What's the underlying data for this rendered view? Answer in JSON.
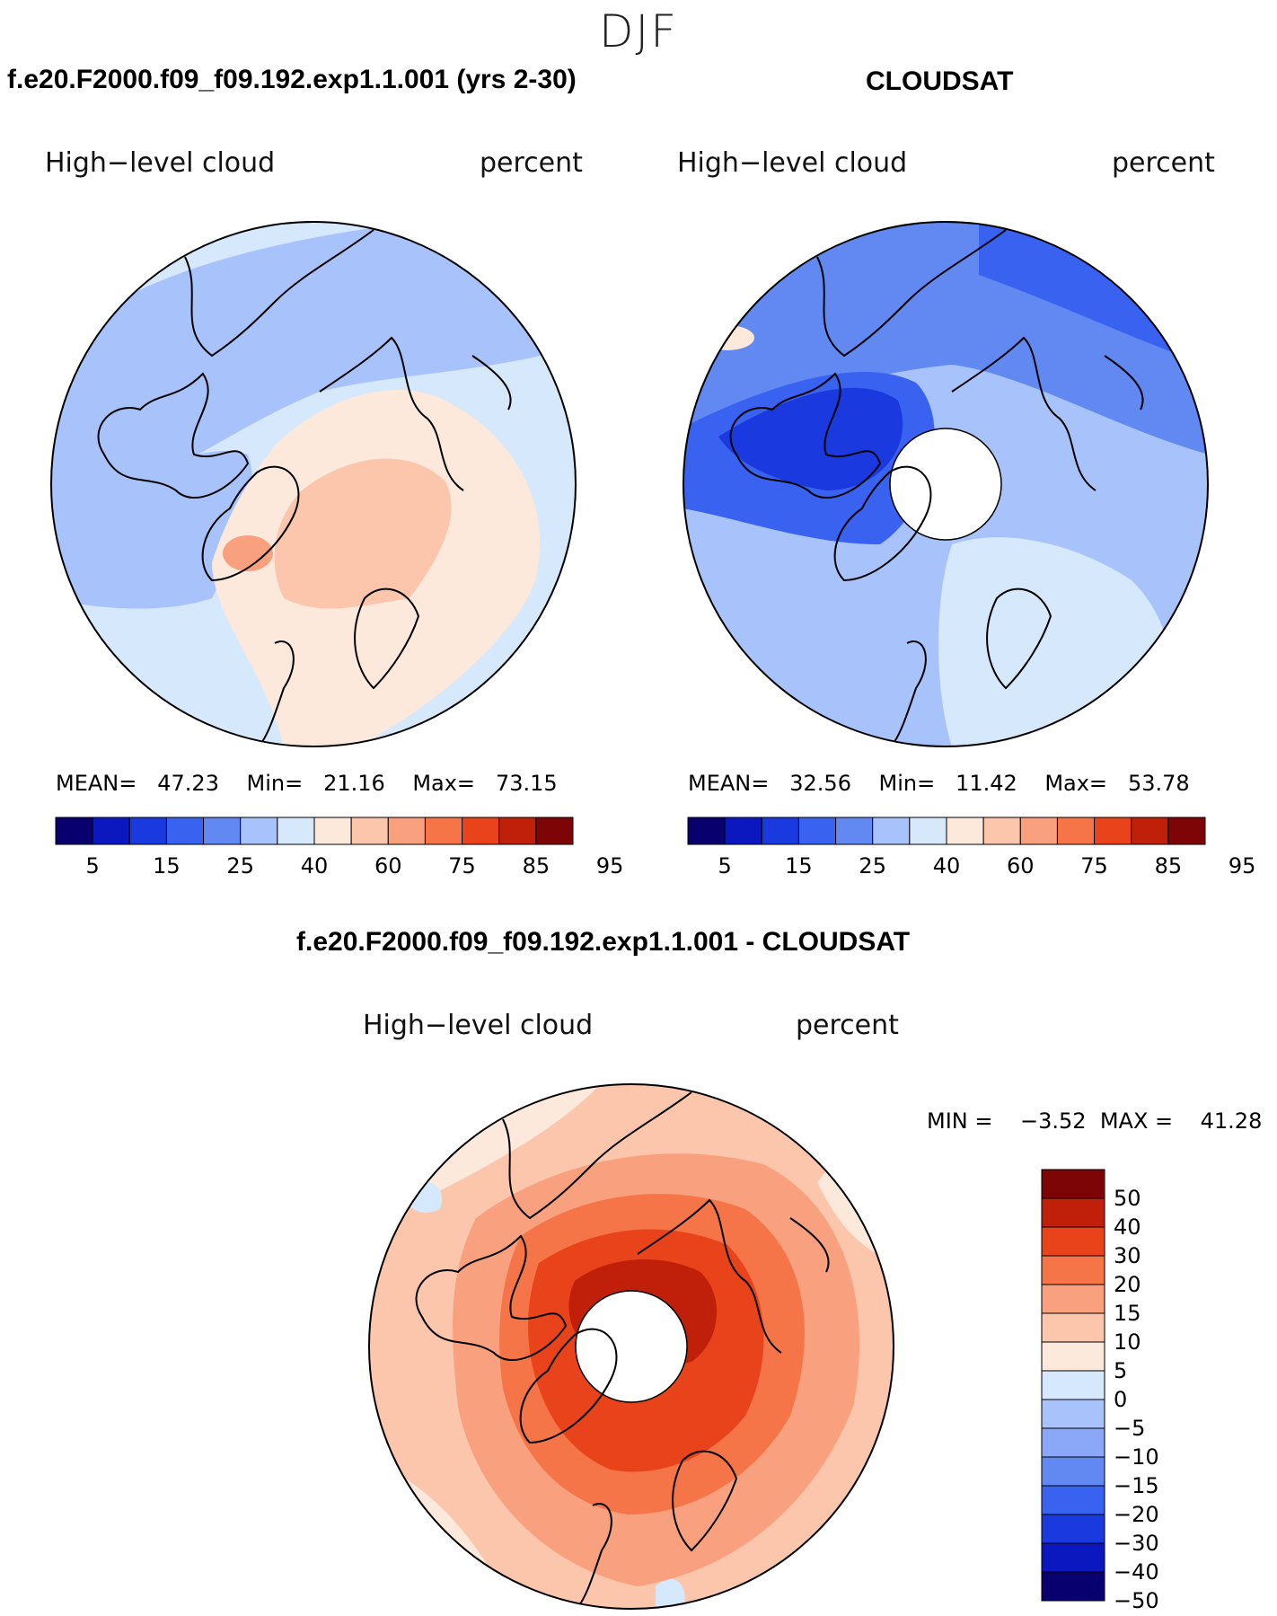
{
  "season": "DJF",
  "palette": {
    "abs": [
      "#08006e",
      "#0b18c0",
      "#1a3ae0",
      "#3a62f0",
      "#6288f2",
      "#a8c2fb",
      "#d6e8fc",
      "#fde9dc",
      "#fcc6ad",
      "#f9a07e",
      "#f57448",
      "#e9431c",
      "#c0200a",
      "#7d0505"
    ],
    "diff": [
      "#7d0505",
      "#c0200a",
      "#e9431c",
      "#f57448",
      "#f9a07e",
      "#fcc6ad",
      "#fde9dc",
      "#d6e8fc",
      "#a8c2fb",
      "#8aa8f7",
      "#6288f2",
      "#3a62f0",
      "#1a3ae0",
      "#0b18c0",
      "#08006e"
    ]
  },
  "panels": [
    {
      "title": "f.e20.F2000.f09_f09.192.exp1.1.001 (yrs 2-30)",
      "variable": "High−level cloud",
      "units": "percent",
      "mean_label": "MEAN=",
      "mean": "47.23",
      "min_label": "Min=",
      "min": "21.16",
      "max_label": "Max=",
      "max": "73.15",
      "colorbar_ticks": [
        "5",
        "15",
        "25",
        "40",
        "60",
        "75",
        "85",
        "95"
      ]
    },
    {
      "title": "CLOUDSAT",
      "variable": "High−level cloud",
      "units": "percent",
      "mean_label": "MEAN=",
      "mean": "32.56",
      "min_label": "Min=",
      "min": "11.42",
      "max_label": "Max=",
      "max": "53.78",
      "colorbar_ticks": [
        "5",
        "15",
        "25",
        "40",
        "60",
        "75",
        "85",
        "95"
      ]
    }
  ],
  "diff": {
    "title": "f.e20.F2000.f09_f09.192.exp1.1.001 - CLOUDSAT",
    "variable": "High−level cloud",
    "units": "percent",
    "min_label": "MIN =",
    "min": "−3.52",
    "max_label": "MAX =",
    "max": "41.28",
    "colorbar_ticks": [
      "50",
      "40",
      "30",
      "20",
      "15",
      "10",
      "5",
      "0",
      "−5",
      "−10",
      "−15",
      "−20",
      "−30",
      "−40",
      "−50"
    ]
  }
}
